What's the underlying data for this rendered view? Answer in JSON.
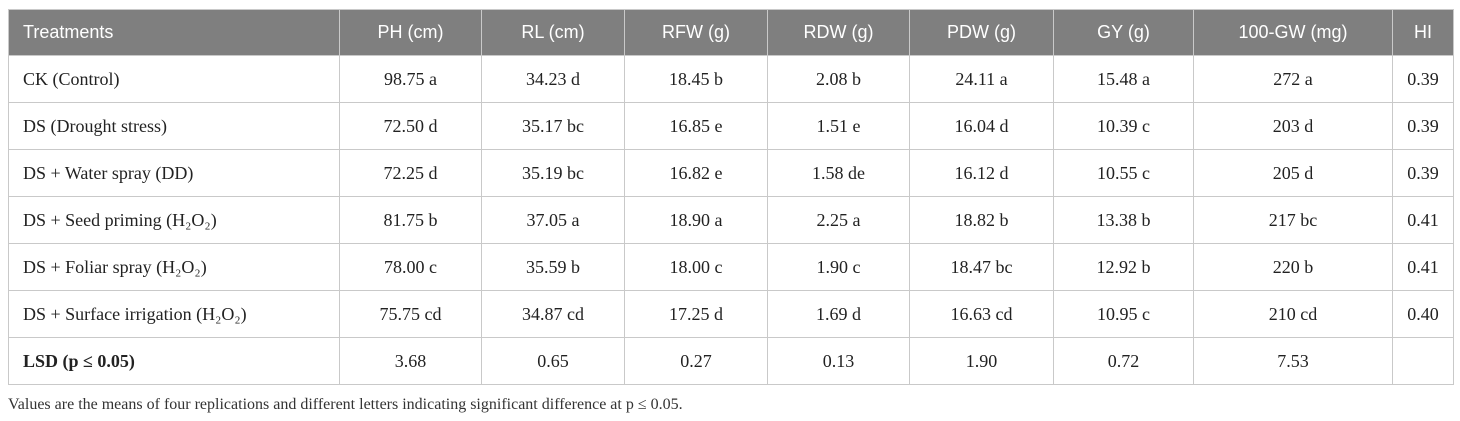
{
  "headers": [
    "Treatments",
    "PH (cm)",
    "RL (cm)",
    "RFW (g)",
    "RDW (g)",
    "PDW (g)",
    "GY (g)",
    "100-GW (mg)",
    "HI"
  ],
  "rows": [
    {
      "treatment": "CK (Control)",
      "sub": "",
      "cells": [
        "98.75 a",
        "34.23 d",
        "18.45 b",
        "2.08 b",
        "24.11 a",
        "15.48 a",
        "272 a",
        "0.39"
      ]
    },
    {
      "treatment": "DS (Drought stress)",
      "sub": "",
      "cells": [
        "72.50 d",
        "35.17 bc",
        "16.85 e",
        "1.51 e",
        "16.04 d",
        "10.39 c",
        "203 d",
        "0.39"
      ]
    },
    {
      "treatment": "DS + Water spray (DD)",
      "sub": "",
      "cells": [
        "72.25 d",
        "35.19 bc",
        "16.82 e",
        "1.58 de",
        "16.12 d",
        "10.55 c",
        "205 d",
        "0.39"
      ]
    },
    {
      "treatment": "DS + Seed priming (H₂O₂)",
      "sub": "",
      "cells": [
        "81.75 b",
        "37.05 a",
        "18.90 a",
        "2.25 a",
        "18.82 b",
        "13.38 b",
        "217 bc",
        "0.41"
      ]
    },
    {
      "treatment": "DS + Foliar spray (H₂O₂)",
      "sub": "",
      "cells": [
        "78.00 c",
        "35.59 b",
        "18.00 c",
        "1.90 c",
        "18.47 bc",
        "12.92 b",
        "220 b",
        "0.41"
      ]
    },
    {
      "treatment": "DS + Surface irrigation (H₂O₂)",
      "sub": "",
      "cells": [
        "75.75 cd",
        "34.87 cd",
        "17.25 d",
        "1.69 d",
        "16.63 cd",
        "10.95 c",
        "210 cd",
        "0.40"
      ]
    },
    {
      "treatment": "LSD (p ≤ 0.05)",
      "sub": "",
      "cells": [
        "3.68",
        "0.65",
        "0.27",
        "0.13",
        "1.90",
        "0.72",
        "7.53",
        ""
      ]
    }
  ],
  "footnote": "Values are the means of four replications and different letters indicating significant difference at p ≤ 0.05."
}
